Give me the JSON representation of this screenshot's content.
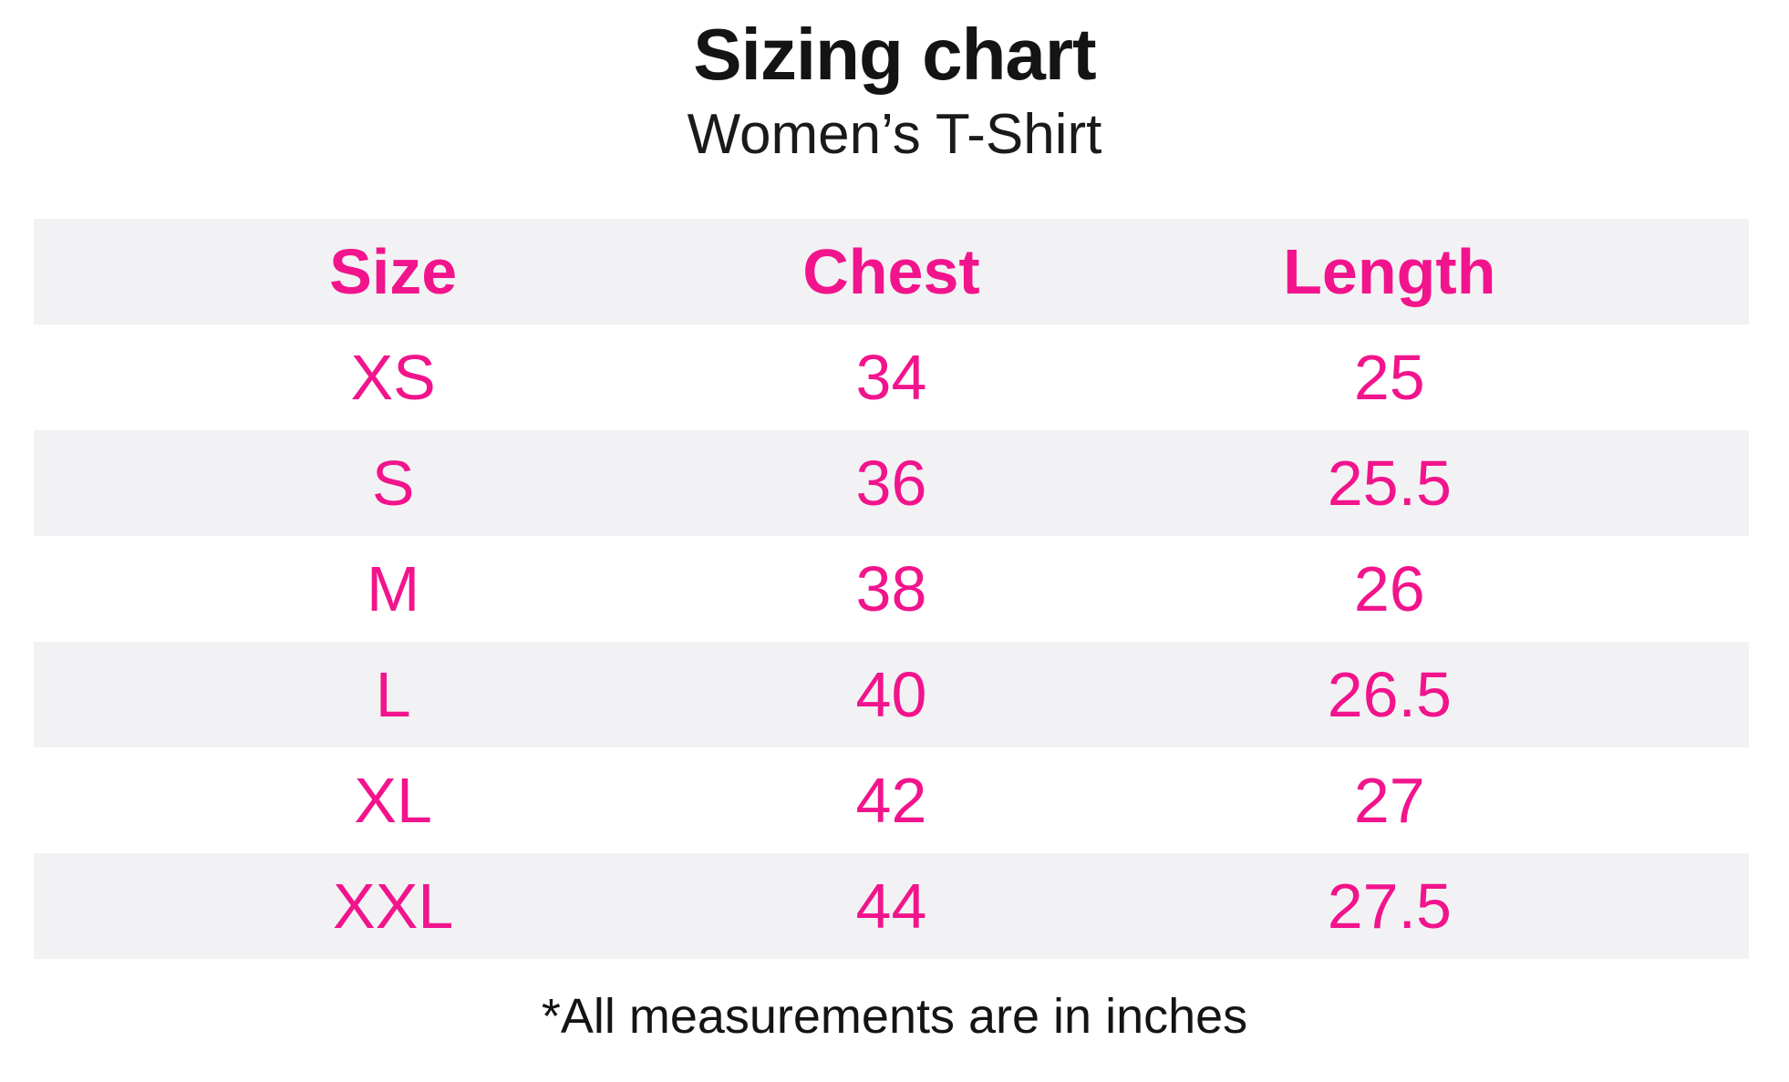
{
  "header": {
    "title": "Sizing chart",
    "subtitle": "Women’s T-Shirt"
  },
  "footer": {
    "note": "*All measurements are in inches"
  },
  "colors": {
    "accent_pink": "#f2148c",
    "row_stripe_gray": "#f2f2f4",
    "text_black": "#141414"
  },
  "chart_data": {
    "type": "table",
    "title": "Sizing chart",
    "subtitle": "Women’s T-Shirt",
    "columns": [
      "Size",
      "Chest",
      "Length"
    ],
    "rows": [
      [
        "XS",
        "34",
        "25"
      ],
      [
        "S",
        "36",
        "25.5"
      ],
      [
        "M",
        "38",
        "26"
      ],
      [
        "L",
        "40",
        "26.5"
      ],
      [
        "XL",
        "42",
        "27"
      ],
      [
        "XXL",
        "44",
        "27.5"
      ]
    ],
    "units": "inches",
    "footnote": "*All measurements are in inches",
    "layout": {
      "stripe_pattern": "header and alternate rows shaded",
      "text_align": "center"
    }
  }
}
